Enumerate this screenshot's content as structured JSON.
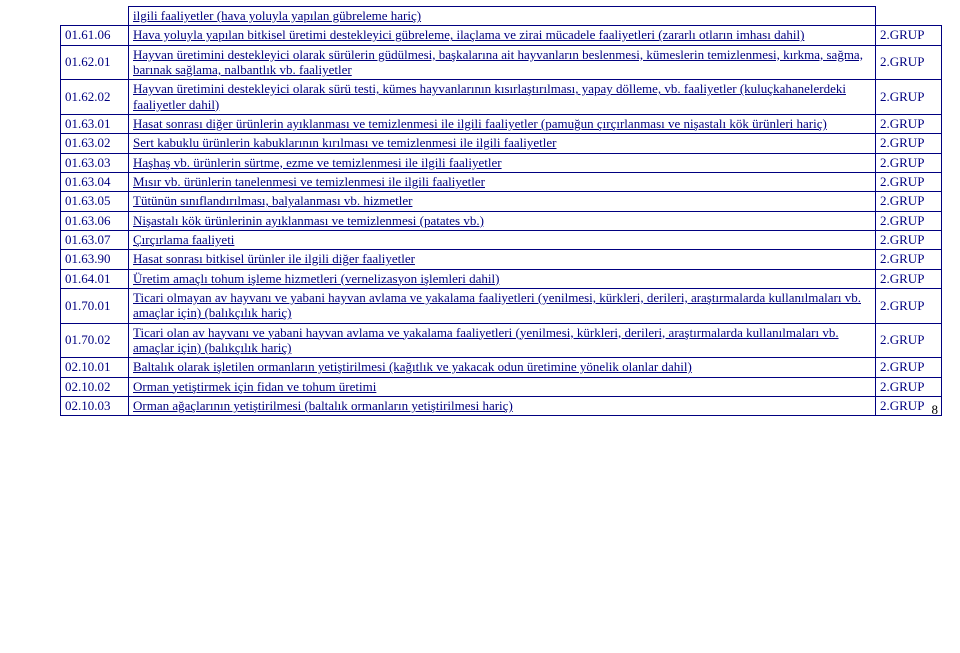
{
  "page_number": "8",
  "header_desc": "ilgili faaliyetler (hava yoluyla yapılan gübreleme hariç)",
  "rows": [
    {
      "code": "01.61.06",
      "desc": "Hava yoluyla yapılan bitkisel üretimi destekleyici gübreleme, ilaçlama ve zirai mücadele faaliyetleri (zararlı otların imhası dahil)",
      "group": "2.GRUP"
    },
    {
      "code": "01.62.01",
      "desc": "Hayvan üretimini destekleyici olarak sürülerin güdülmesi, başkalarına ait hayvanların beslenmesi, kümeslerin temizlenmesi, kırkma, sağma, barınak sağlama, nalbantlık vb. faaliyetler",
      "group": "2.GRUP"
    },
    {
      "code": "01.62.02",
      "desc": "Hayvan üretimini destekleyici olarak sürü testi, kümes hayvanlarının kısırlaştırılması, yapay dölleme, vb. faaliyetler (kuluçkahanelerdeki faaliyetler dahil)",
      "group": "2.GRUP"
    },
    {
      "code": "01.63.01",
      "desc": "Hasat sonrası diğer ürünlerin ayıklanması ve temizlenmesi ile ilgili faaliyetler (pamuğun çırçırlanması ve nişastalı kök ürünleri hariç)",
      "group": "2.GRUP"
    },
    {
      "code": "01.63.02",
      "desc": "Sert kabuklu ürünlerin kabuklarının kırılması ve temizlenmesi ile ilgili faaliyetler",
      "group": "2.GRUP"
    },
    {
      "code": "01.63.03",
      "desc": "Haşhaş vb. ürünlerin sürtme, ezme ve temizlenmesi ile ilgili faaliyetler",
      "group": "2.GRUP"
    },
    {
      "code": "01.63.04",
      "desc": "Mısır vb. ürünlerin tanelenmesi ve temizlenmesi ile ilgili faaliyetler",
      "group": "2.GRUP"
    },
    {
      "code": "01.63.05",
      "desc": "Tütünün sınıflandırılması, balyalanması vb. hizmetler",
      "group": "2.GRUP"
    },
    {
      "code": "01.63.06",
      "desc": "Nişastalı kök ürünlerinin ayıklanması ve temizlenmesi (patates vb.)",
      "group": "2.GRUP"
    },
    {
      "code": "01.63.07",
      "desc": "Çırçırlama faaliyeti",
      "group": "2.GRUP"
    },
    {
      "code": "01.63.90",
      "desc": "Hasat sonrası bitkisel ürünler ile ilgili diğer faaliyetler",
      "group": "2.GRUP"
    },
    {
      "code": "01.64.01",
      "desc": "Üretim amaçlı tohum işleme hizmetleri (vernelizasyon işlemleri dahil)",
      "group": "2.GRUP"
    },
    {
      "code": "01.70.01",
      "desc": "Ticari olmayan av hayvanı ve yabani hayvan avlama ve yakalama faaliyetleri (yenilmesi, kürkleri, derileri, araştırmalarda kullanılmaları vb. amaçlar için) (balıkçılık hariç)",
      "group": "2.GRUP"
    },
    {
      "code": "01.70.02",
      "desc": "Ticari olan av hayvanı ve yabani hayvan avlama ve yakalama faaliyetleri (yenilmesi, kürkleri, derileri, araştırmalarda kullanılmaları vb. amaçlar için) (balıkçılık hariç)",
      "group": "2.GRUP"
    },
    {
      "code": "02.10.01",
      "desc": "Baltalık olarak işletilen ormanların yetiştirilmesi (kağıtlık ve yakacak odun üretimine yönelik olanlar dahil)",
      "group": "2.GRUP"
    },
    {
      "code": "02.10.02",
      "desc": "Orman yetiştirmek için fidan ve tohum üretimi",
      "group": "2.GRUP"
    },
    {
      "code": "02.10.03",
      "desc": "Orman ağaçlarının yetiştirilmesi (baltalık ormanların yetiştirilmesi hariç)",
      "group": "2.GRUP"
    }
  ]
}
